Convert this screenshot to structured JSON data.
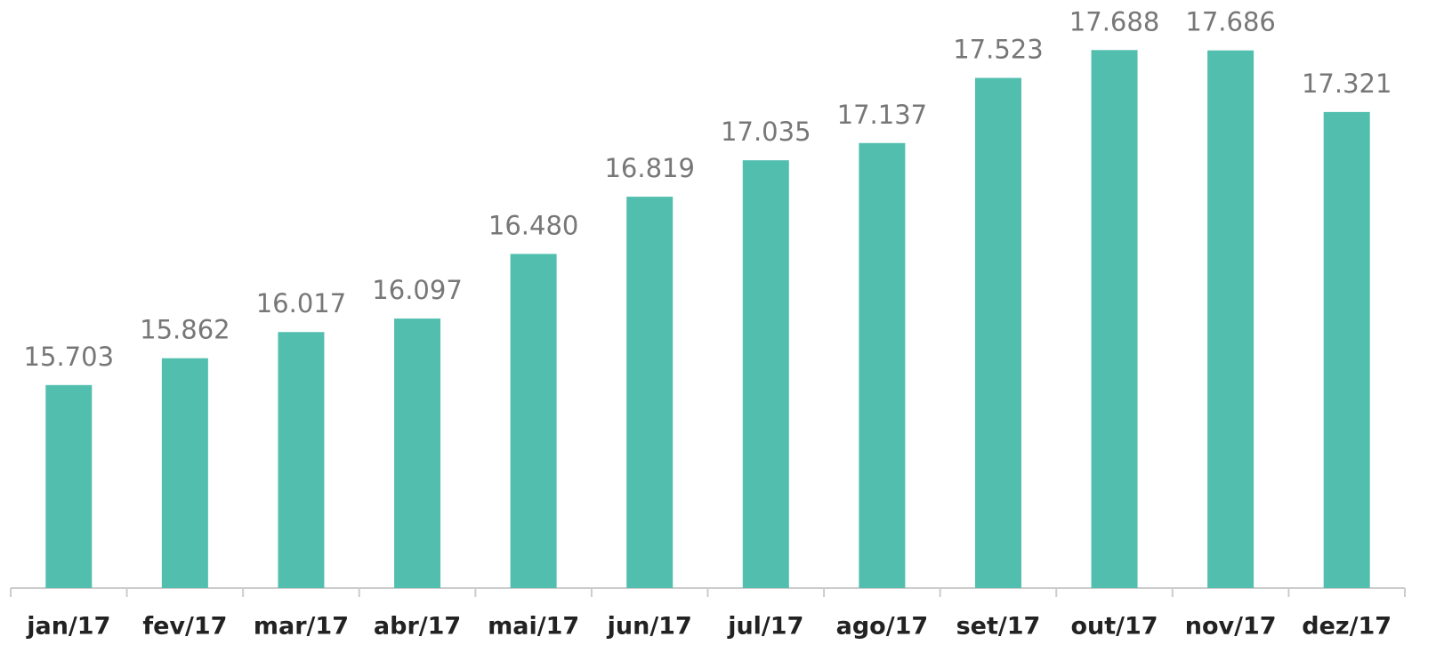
{
  "chart_data": {
    "type": "bar",
    "categories": [
      "jan/17",
      "fev/17",
      "mar/17",
      "abr/17",
      "mai/17",
      "jun/17",
      "jul/17",
      "ago/17",
      "set/17",
      "out/17",
      "nov/17",
      "dez/17"
    ],
    "values": [
      15703,
      15862,
      16017,
      16097,
      16480,
      16819,
      17035,
      17137,
      17523,
      17688,
      17686,
      17321
    ],
    "value_labels": [
      "15.703",
      "15.862",
      "16.017",
      "16.097",
      "16.480",
      "16.819",
      "17.035",
      "17.137",
      "17.523",
      "17.688",
      "17.686",
      "17.321"
    ],
    "color": "#52bfae",
    "ylim": [
      14500,
      17700
    ]
  }
}
